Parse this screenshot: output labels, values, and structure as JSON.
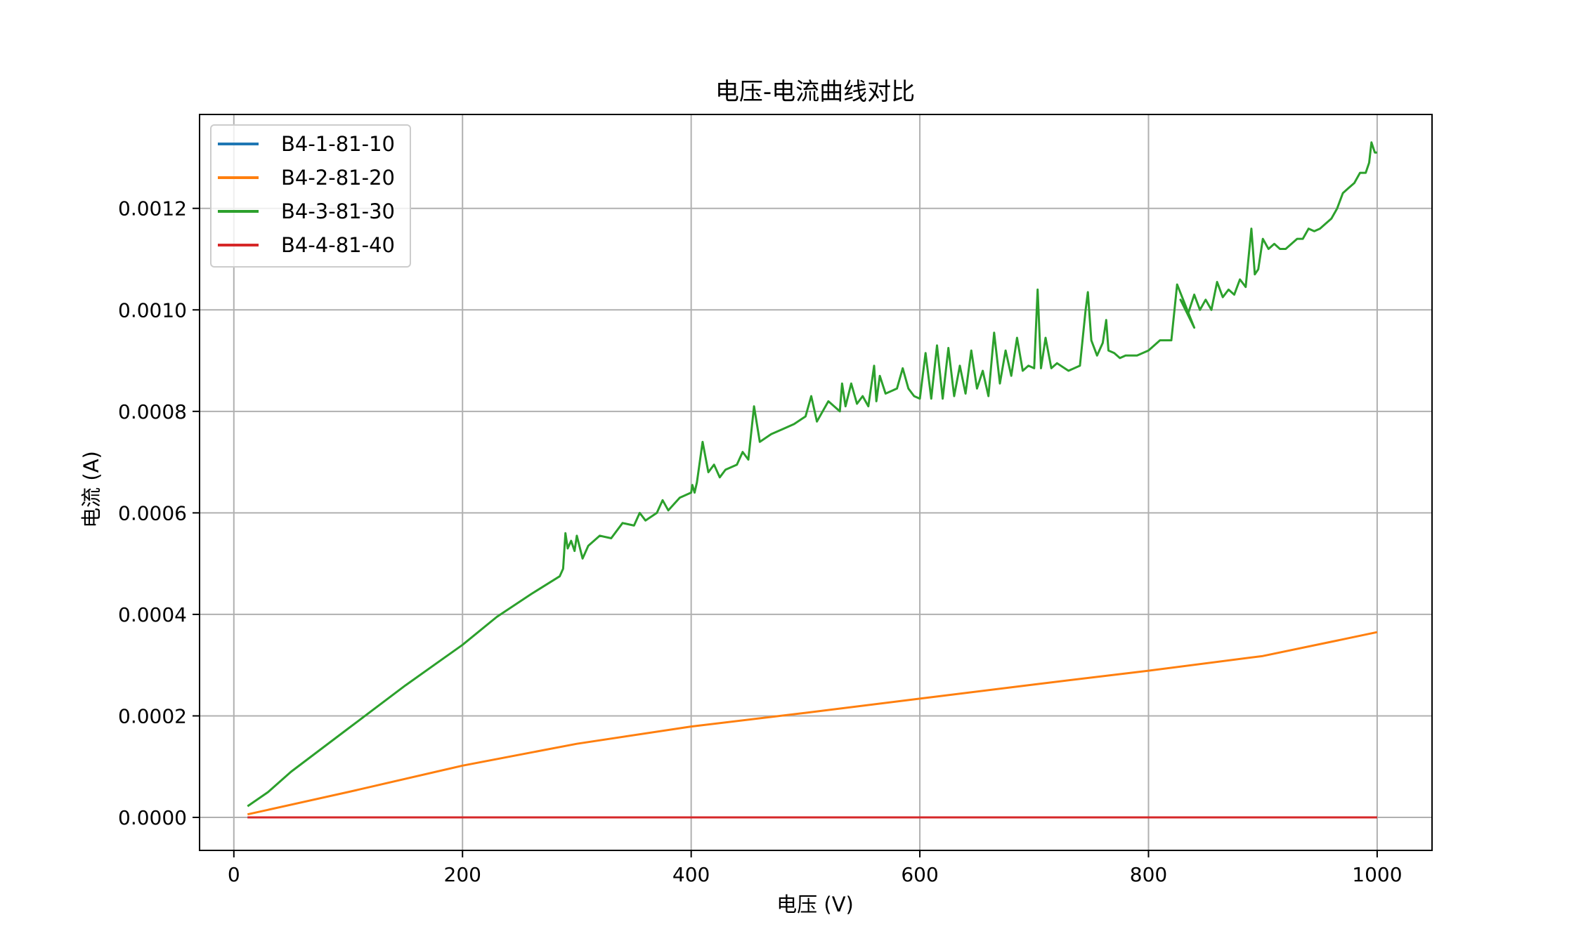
{
  "chart_data": {
    "type": "line",
    "title": "电压-电流曲线对比",
    "xlabel": "电压 (V)",
    "ylabel": "电流 (A)",
    "xlim": [
      -30,
      1048
    ],
    "ylim": [
      -6.5e-05,
      0.001385
    ],
    "xticks": [
      0,
      200,
      400,
      600,
      800,
      1000
    ],
    "xtick_labels": [
      "0",
      "200",
      "400",
      "600",
      "800",
      "1000"
    ],
    "yticks": [
      0.0,
      0.0002,
      0.0004,
      0.0006,
      0.0008,
      0.001,
      0.0012
    ],
    "ytick_labels": [
      "0.0000",
      "0.0002",
      "0.0004",
      "0.0006",
      "0.0008",
      "0.0010",
      "0.0012"
    ],
    "grid": true,
    "legend_position": "top-left",
    "series": [
      {
        "name": "B4-1-81-10",
        "color": "#1f77b4",
        "x": [
          12,
          1000
        ],
        "y": [
          0.0,
          0.0
        ]
      },
      {
        "name": "B4-2-81-20",
        "color": "#ff7f0e",
        "x": [
          12,
          100,
          200,
          300,
          400,
          500,
          600,
          700,
          800,
          900,
          960,
          1000
        ],
        "y": [
          6e-06,
          5e-05,
          0.000102,
          0.000145,
          0.000179,
          0.000206,
          0.000234,
          0.000262,
          0.000289,
          0.000318,
          0.000346,
          0.000365
        ]
      },
      {
        "name": "B4-3-81-30",
        "color": "#2ca02c",
        "x": [
          12,
          30,
          50,
          100,
          150,
          200,
          230,
          260,
          285,
          288,
          290,
          292,
          295,
          298,
          300,
          305,
          310,
          320,
          330,
          340,
          350,
          355,
          360,
          370,
          375,
          380,
          390,
          395,
          400,
          401,
          403,
          405,
          410,
          415,
          420,
          425,
          430,
          440,
          445,
          450,
          455,
          460,
          470,
          480,
          490,
          500,
          505,
          510,
          520,
          530,
          532,
          535,
          540,
          545,
          550,
          555,
          560,
          562,
          565,
          570,
          580,
          585,
          590,
          595,
          600,
          605,
          610,
          615,
          620,
          625,
          630,
          635,
          640,
          645,
          650,
          655,
          660,
          665,
          670,
          675,
          680,
          685,
          690,
          695,
          700,
          703,
          706,
          710,
          715,
          720,
          730,
          740,
          745,
          747,
          750,
          755,
          760,
          763,
          765,
          770,
          775,
          780,
          790,
          800,
          810,
          820,
          825,
          840,
          828,
          835,
          840,
          845,
          850,
          855,
          860,
          865,
          870,
          875,
          880,
          885,
          890,
          893,
          896,
          900,
          905,
          910,
          915,
          920,
          925,
          930,
          935,
          940,
          945,
          950,
          955,
          960,
          965,
          970,
          975,
          980,
          985,
          990,
          993,
          995,
          998,
          1000
        ],
        "y": [
          2.2e-05,
          5e-05,
          9e-05,
          0.000175,
          0.00026,
          0.00034,
          0.000395,
          0.00044,
          0.000475,
          0.00049,
          0.00056,
          0.00053,
          0.000545,
          0.000525,
          0.000555,
          0.00051,
          0.000535,
          0.000555,
          0.00055,
          0.00058,
          0.000575,
          0.0006,
          0.000585,
          0.0006,
          0.000625,
          0.000605,
          0.00063,
          0.000635,
          0.00064,
          0.000655,
          0.00064,
          0.00066,
          0.00074,
          0.00068,
          0.000695,
          0.00067,
          0.000685,
          0.000695,
          0.00072,
          0.000705,
          0.00081,
          0.00074,
          0.000755,
          0.000765,
          0.000775,
          0.00079,
          0.00083,
          0.00078,
          0.00082,
          0.0008,
          0.000855,
          0.00081,
          0.000855,
          0.000815,
          0.00083,
          0.00081,
          0.00089,
          0.00082,
          0.00087,
          0.000835,
          0.000845,
          0.000885,
          0.000845,
          0.00083,
          0.000825,
          0.000915,
          0.000825,
          0.00093,
          0.000825,
          0.000925,
          0.00083,
          0.00089,
          0.000835,
          0.00092,
          0.000845,
          0.00088,
          0.00083,
          0.000955,
          0.000855,
          0.00092,
          0.00087,
          0.000945,
          0.00088,
          0.00089,
          0.000885,
          0.00104,
          0.000885,
          0.000945,
          0.000885,
          0.000895,
          0.00088,
          0.00089,
          0.001,
          0.001035,
          0.00094,
          0.00091,
          0.000935,
          0.00098,
          0.00092,
          0.000915,
          0.000905,
          0.00091,
          0.00091,
          0.00092,
          0.00094,
          0.00094,
          0.00105,
          0.000965,
          0.00102,
          0.000995,
          0.00103,
          0.001,
          0.00102,
          0.001,
          0.001055,
          0.001025,
          0.00104,
          0.00103,
          0.00106,
          0.001045,
          0.00116,
          0.00107,
          0.00108,
          0.00114,
          0.00112,
          0.00113,
          0.00112,
          0.00112,
          0.00113,
          0.00114,
          0.00114,
          0.00116,
          0.001155,
          0.00116,
          0.00117,
          0.00118,
          0.0012,
          0.00123,
          0.00124,
          0.00125,
          0.00127,
          0.00127,
          0.00129,
          0.00133,
          0.00131,
          0.00131
        ]
      },
      {
        "name": "B4-4-81-40",
        "color": "#d62728",
        "x": [
          12,
          1000
        ],
        "y": [
          0.0,
          0.0
        ]
      }
    ]
  }
}
